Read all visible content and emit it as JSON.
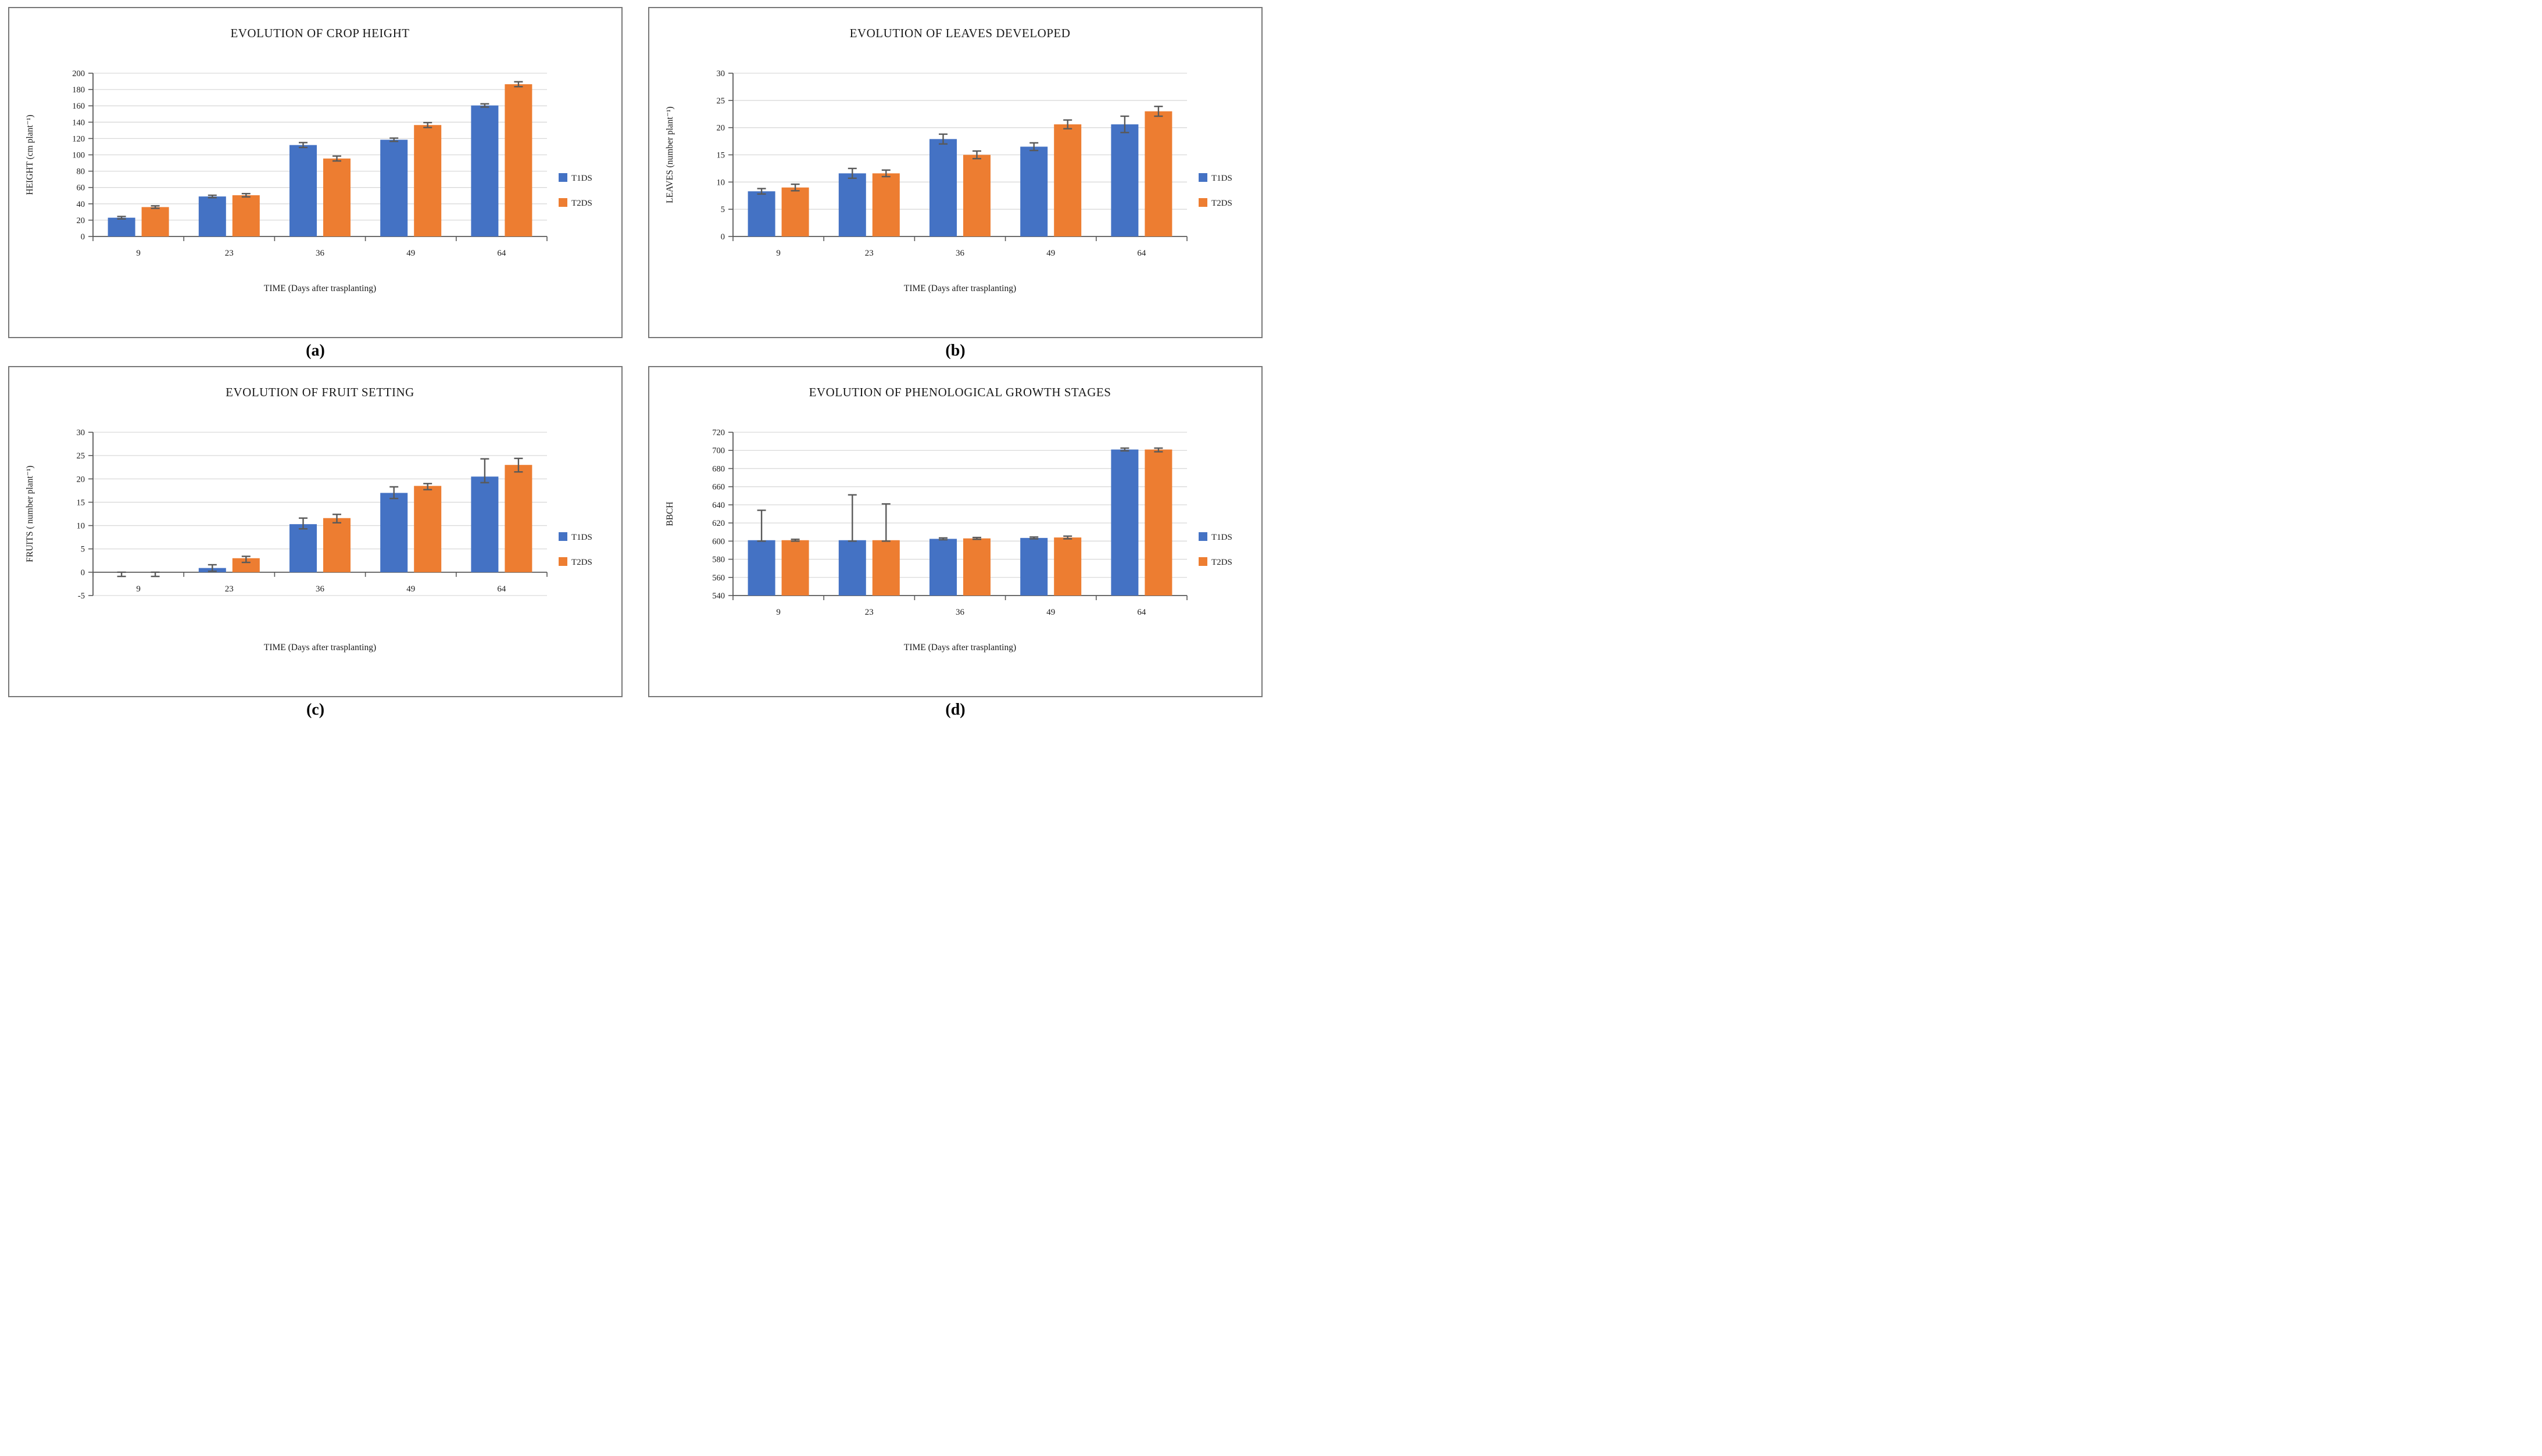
{
  "colors": {
    "series1": "#4472C4",
    "series2": "#ED7D31",
    "grid": "#D9D9D9",
    "axis": "#595959",
    "error": "#595959",
    "panel_border": "#777777",
    "background": "#FFFFFF"
  },
  "chart_data": [
    {
      "type": "bar",
      "panel_label": "(a)",
      "title": "EVOLUTION OF CROP HEIGHT",
      "xlabel": "TIME (Days after trasplanting)",
      "ylabel": "HEIGHT (cm plant⁻¹)",
      "categories": [
        "9",
        "23",
        "36",
        "49",
        "64"
      ],
      "ylim": [
        0,
        200
      ],
      "ystep": 20,
      "grid": true,
      "legend_position": "right",
      "series": [
        {
          "name": "T1DS",
          "color": "#4472C4",
          "values": [
            23,
            49,
            112,
            118.5,
            160.5
          ],
          "err_up": [
            1.5,
            1.5,
            3,
            2,
            2
          ],
          "err_down": [
            1.5,
            1.5,
            3,
            2,
            2
          ]
        },
        {
          "name": "T2DS",
          "color": "#ED7D31",
          "values": [
            36,
            50.5,
            95.5,
            136.5,
            186.5
          ],
          "err_up": [
            1.5,
            2,
            3,
            3,
            3
          ],
          "err_down": [
            1.5,
            2,
            3,
            3,
            3
          ]
        }
      ]
    },
    {
      "type": "bar",
      "panel_label": "(b)",
      "title": "EVOLUTION OF LEAVES DEVELOPED",
      "xlabel": "TIME (Days after trasplanting)",
      "ylabel": "LEAVES (number plant⁻¹)",
      "categories": [
        "9",
        "23",
        "36",
        "49",
        "64"
      ],
      "ylim": [
        0,
        30
      ],
      "ystep": 5,
      "grid": true,
      "legend_position": "right",
      "series": [
        {
          "name": "T1DS",
          "color": "#4472C4",
          "values": [
            8.3,
            11.6,
            17.9,
            16.5,
            20.6
          ],
          "err_up": [
            0.5,
            0.9,
            0.9,
            0.7,
            1.5
          ],
          "err_down": [
            0.5,
            0.9,
            0.9,
            0.7,
            1.5
          ]
        },
        {
          "name": "T2DS",
          "color": "#ED7D31",
          "values": [
            9.0,
            11.6,
            15.0,
            20.6,
            23.0
          ],
          "err_up": [
            0.6,
            0.6,
            0.7,
            0.8,
            0.9
          ],
          "err_down": [
            0.6,
            0.6,
            0.7,
            0.8,
            0.9
          ]
        }
      ]
    },
    {
      "type": "bar",
      "panel_label": "(c)",
      "title": "EVOLUTION OF FRUIT SETTING",
      "xlabel": "TIME (Days after trasplanting)",
      "ylabel": "FRUITS ( number plant⁻¹)",
      "categories": [
        "9",
        "23",
        "36",
        "49",
        "64"
      ],
      "ylim": [
        -5,
        30
      ],
      "ystep": 5,
      "grid": true,
      "legend_position": "right",
      "series": [
        {
          "name": "T1DS",
          "color": "#4472C4",
          "values": [
            0,
            0.9,
            10.3,
            17.0,
            20.5
          ],
          "err_up": [
            0,
            0.7,
            1.3,
            1.3,
            3.8
          ],
          "err_down": [
            0.9,
            0.7,
            1.0,
            1.2,
            1.3
          ]
        },
        {
          "name": "T2DS",
          "color": "#ED7D31",
          "values": [
            0,
            3.0,
            11.6,
            18.5,
            23.0
          ],
          "err_up": [
            0,
            0.4,
            0.8,
            0.5,
            1.4
          ],
          "err_down": [
            0.9,
            0.9,
            1.0,
            0.8,
            1.5
          ]
        }
      ]
    },
    {
      "type": "bar",
      "panel_label": "(d)",
      "title": "EVOLUTION OF PHENOLOGICAL GROWTH STAGES",
      "xlabel": "TIME (Days after trasplanting)",
      "ylabel": "BBCH",
      "categories": [
        "9",
        "23",
        "36",
        "49",
        "64"
      ],
      "ylim": [
        540,
        720
      ],
      "ystep": 20,
      "grid": true,
      "legend_position": "right",
      "series": [
        {
          "name": "T1DS",
          "color": "#4472C4",
          "values": [
            601,
            601,
            602.5,
            603.5,
            701
          ],
          "err_up": [
            33,
            50,
            1,
            1,
            1.5
          ],
          "err_down": [
            1,
            1,
            1,
            1,
            1.5
          ]
        },
        {
          "name": "T2DS",
          "color": "#ED7D31",
          "values": [
            601,
            601,
            603,
            604,
            701
          ],
          "err_up": [
            1,
            40,
            1,
            1.5,
            1.5
          ],
          "err_down": [
            1,
            1,
            1,
            1.5,
            2.5
          ]
        }
      ]
    }
  ]
}
